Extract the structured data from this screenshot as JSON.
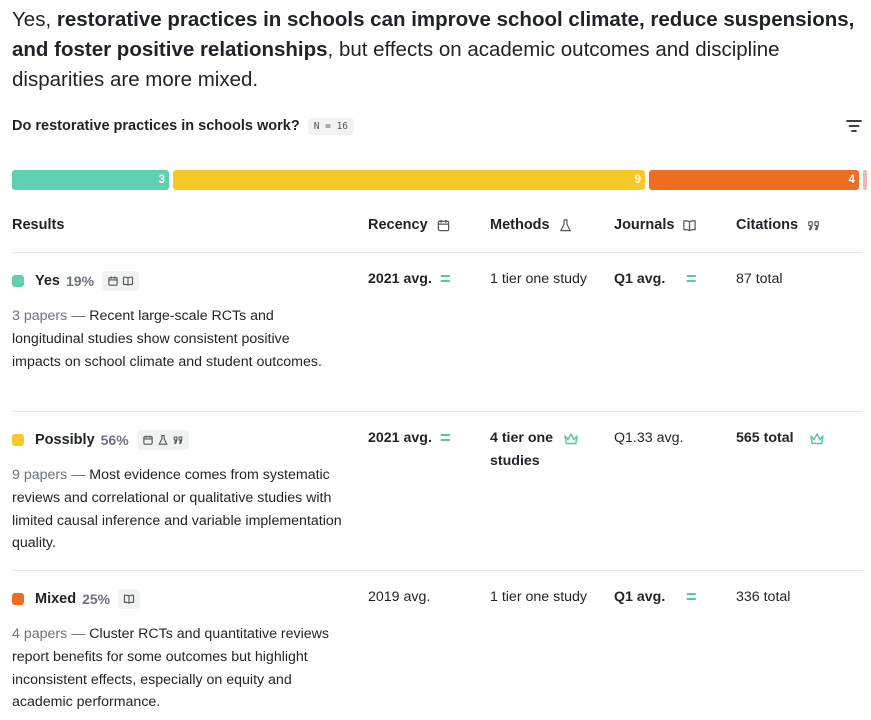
{
  "summary": {
    "prefix": "Yes, ",
    "bold": "restorative practices in schools can improve school climate, reduce suspensions, and foster positive relationships",
    "suffix": ", but effects on academic outcomes and discipline disparities are more mixed."
  },
  "question": {
    "text": "Do restorative practices in schools work?",
    "n_badge": "N = 16"
  },
  "distribution_bar": [
    {
      "label": "3",
      "color": "#5fd0b0",
      "fraction": 0.1875
    },
    {
      "label": "9",
      "color": "#f6c927",
      "fraction": 0.5625
    },
    {
      "label": "4",
      "color": "#ee6d21",
      "fraction": 0.25
    },
    {
      "label": "",
      "color": "#f7b3b3",
      "fraction": 0.01
    }
  ],
  "columns": {
    "results": "Results",
    "recency": "Recency",
    "methods": "Methods",
    "journals": "Journals",
    "citations": "Citations"
  },
  "rows": [
    {
      "label": "Yes",
      "pct": "19%",
      "color": "#5fd0b0",
      "papers": "3 papers",
      "desc": "Recent large-scale RCTs and longitudinal studies show consistent positive impacts on school climate and student outcomes.",
      "recency": "2021 avg.",
      "methods": "1 tier one study",
      "journals": "Q1 avg.",
      "citations": "87 total"
    },
    {
      "label": "Possibly",
      "pct": "56%",
      "color": "#f6c927",
      "papers": "9 papers",
      "desc": "Most evidence comes from systematic reviews and correlational or qualitative studies with limited causal inference and variable implementation quality.",
      "recency": "2021 avg.",
      "methods": "4 tier one studies",
      "journals": "Q1.33 avg.",
      "citations": "565 total"
    },
    {
      "label": "Mixed",
      "pct": "25%",
      "color": "#ee6d21",
      "papers": "4 papers",
      "desc": "Cluster RCTs and quantitative reviews report benefits for some outcomes but highlight inconsistent effects, especially on equity and academic performance.",
      "recency": "2019 avg.",
      "methods": "1 tier one study",
      "journals": "Q1 avg.",
      "citations": "336 total"
    }
  ],
  "separator": " — ",
  "equal_sign": "="
}
